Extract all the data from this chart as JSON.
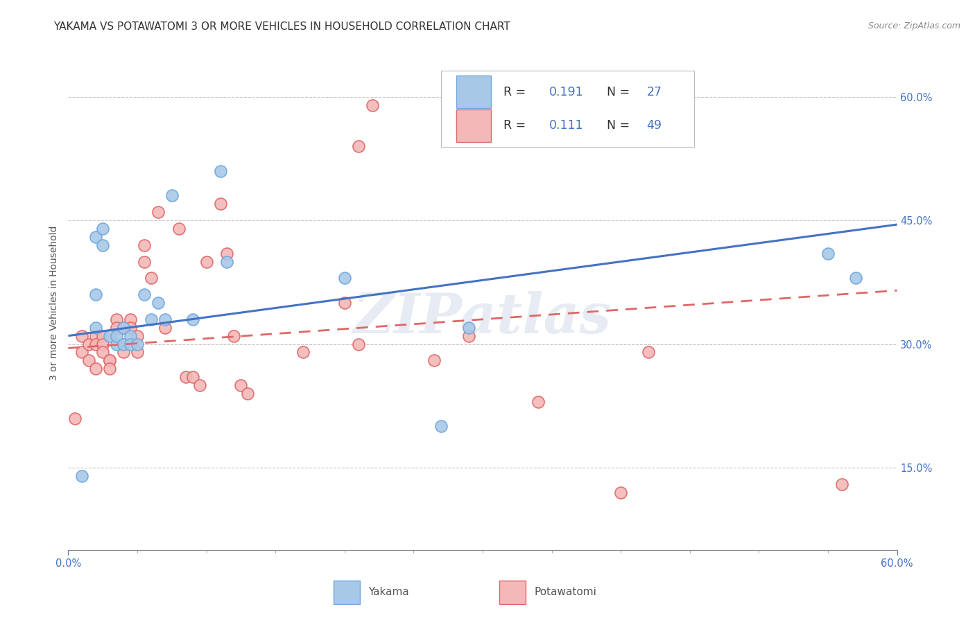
{
  "title": "YAKAMA VS POTAWATOMI 3 OR MORE VEHICLES IN HOUSEHOLD CORRELATION CHART",
  "source": "Source: ZipAtlas.com",
  "ylabel": "3 or more Vehicles in Household",
  "watermark": "ZIPatlas",
  "xmin": 0.0,
  "xmax": 0.6,
  "ymin": 0.05,
  "ymax": 0.65,
  "yticks": [
    0.15,
    0.3,
    0.45,
    0.6
  ],
  "xtick_minor": [
    0.05,
    0.1,
    0.15,
    0.2,
    0.25,
    0.3,
    0.35,
    0.4,
    0.45,
    0.5,
    0.55,
    0.6
  ],
  "blue_color": "#a8c8e8",
  "blue_edge_color": "#6fa8dc",
  "pink_color": "#f4b8b8",
  "pink_edge_color": "#e06666",
  "blue_line_color": "#4472c4",
  "pink_line_color": "#e06666",
  "text_blue": "#4472c4",
  "text_pink": "#e06666",
  "grid_color": "#c0c0c0",
  "background_color": "#ffffff",
  "yakama_x": [
    0.01,
    0.02,
    0.02,
    0.02,
    0.025,
    0.025,
    0.03,
    0.035,
    0.035,
    0.04,
    0.04,
    0.045,
    0.045,
    0.05,
    0.055,
    0.06,
    0.065,
    0.07,
    0.075,
    0.09,
    0.11,
    0.115,
    0.2,
    0.27,
    0.29,
    0.55,
    0.57
  ],
  "yakama_y": [
    0.14,
    0.43,
    0.36,
    0.32,
    0.44,
    0.42,
    0.31,
    0.3,
    0.31,
    0.32,
    0.3,
    0.31,
    0.3,
    0.3,
    0.36,
    0.33,
    0.35,
    0.33,
    0.48,
    0.33,
    0.51,
    0.4,
    0.38,
    0.2,
    0.32,
    0.41,
    0.38
  ],
  "potawatomi_x": [
    0.005,
    0.01,
    0.01,
    0.015,
    0.015,
    0.02,
    0.02,
    0.02,
    0.025,
    0.025,
    0.025,
    0.03,
    0.03,
    0.03,
    0.035,
    0.035,
    0.04,
    0.04,
    0.04,
    0.045,
    0.045,
    0.05,
    0.05,
    0.055,
    0.055,
    0.06,
    0.065,
    0.07,
    0.08,
    0.085,
    0.09,
    0.095,
    0.1,
    0.11,
    0.115,
    0.12,
    0.125,
    0.13,
    0.17,
    0.2,
    0.21,
    0.21,
    0.22,
    0.265,
    0.29,
    0.34,
    0.4,
    0.42,
    0.56
  ],
  "potawatomi_y": [
    0.21,
    0.31,
    0.29,
    0.3,
    0.28,
    0.31,
    0.3,
    0.27,
    0.31,
    0.3,
    0.29,
    0.28,
    0.28,
    0.27,
    0.33,
    0.32,
    0.32,
    0.3,
    0.29,
    0.33,
    0.32,
    0.31,
    0.29,
    0.42,
    0.4,
    0.38,
    0.46,
    0.32,
    0.44,
    0.26,
    0.26,
    0.25,
    0.4,
    0.47,
    0.41,
    0.31,
    0.25,
    0.24,
    0.29,
    0.35,
    0.54,
    0.3,
    0.59,
    0.28,
    0.31,
    0.23,
    0.12,
    0.29,
    0.13
  ],
  "yakama_line_x0": 0.0,
  "yakama_line_y0": 0.31,
  "yakama_line_x1": 0.6,
  "yakama_line_y1": 0.445,
  "potawatomi_line_x0": 0.0,
  "potawatomi_line_y0": 0.295,
  "potawatomi_line_x1": 0.6,
  "potawatomi_line_y1": 0.365
}
